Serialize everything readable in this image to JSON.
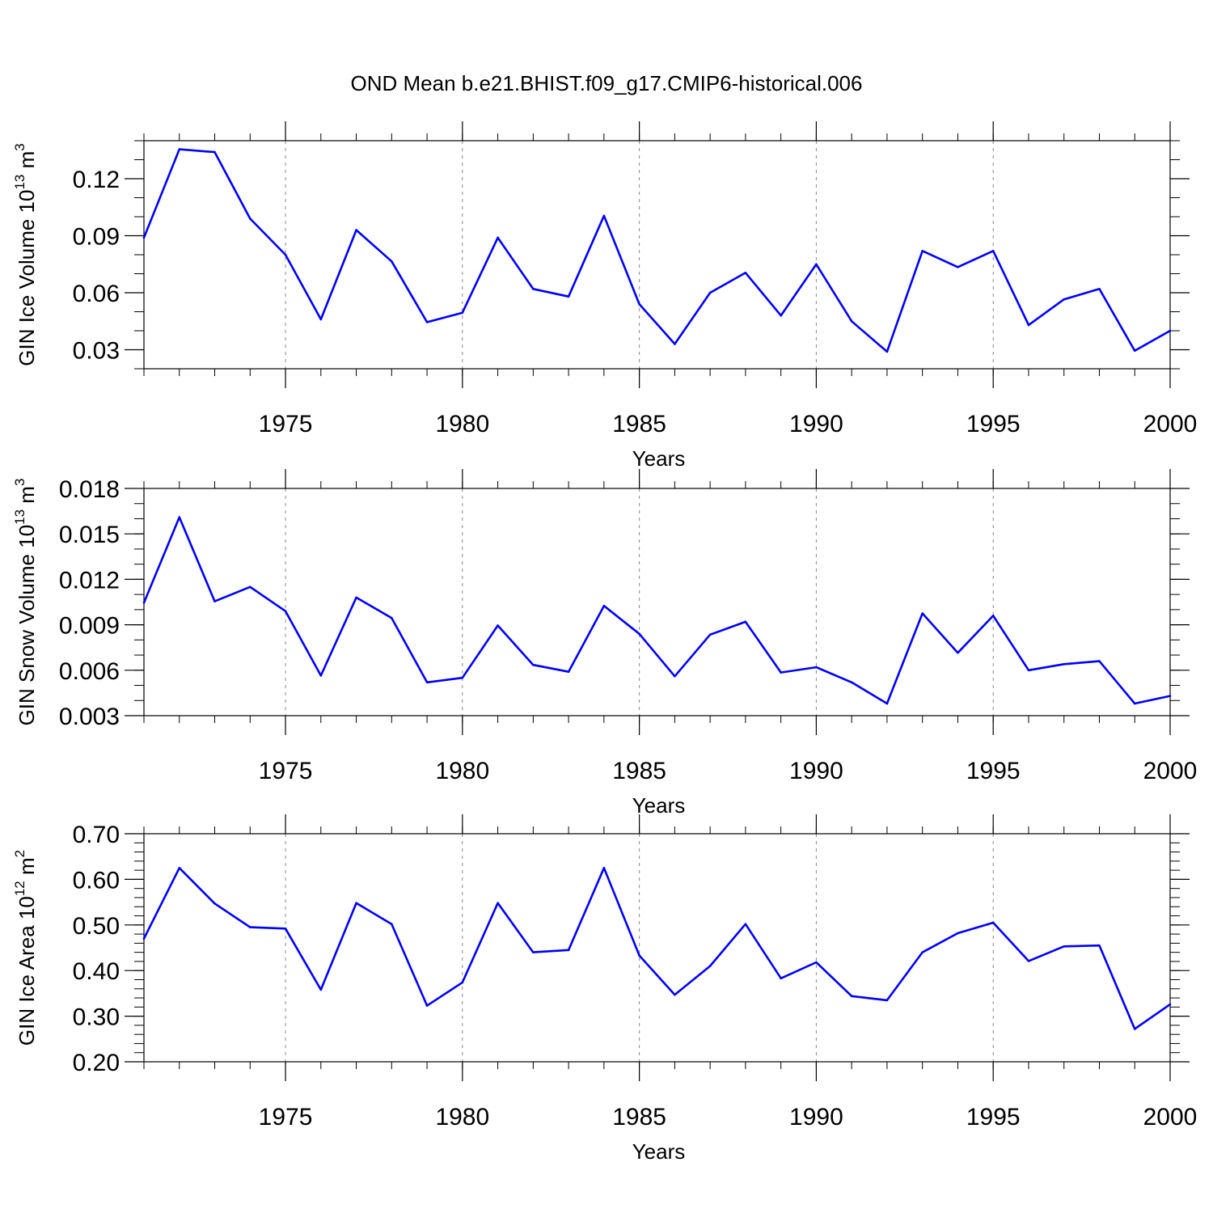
{
  "figure_title": "OND Mean b.e21.BHIST.f09_g17.CMIP6-historical.006",
  "line_color": "#0000ff",
  "chart_data": [
    {
      "type": "line",
      "title": "",
      "xlabel": "Years",
      "ylabel_parts": {
        "base": "GIN Ice Volume 10",
        "exp": "13",
        "unit": " m",
        "unit_exp": "3"
      },
      "xlim": [
        1971,
        2000
      ],
      "ylim": [
        0.02,
        0.14
      ],
      "xticks": [
        "1975",
        "1980",
        "1985",
        "1990",
        "1995",
        "2000"
      ],
      "yticks": [
        "0.03",
        "0.06",
        "0.09",
        "0.12"
      ],
      "grid_x": "dashed",
      "x": [
        1971,
        1972,
        1973,
        1974,
        1975,
        1976,
        1977,
        1978,
        1979,
        1980,
        1981,
        1982,
        1983,
        1984,
        1985,
        1986,
        1987,
        1988,
        1989,
        1990,
        1991,
        1992,
        1993,
        1994,
        1995,
        1996,
        1997,
        1998,
        1999,
        2000
      ],
      "values": [
        0.089,
        0.1355,
        0.134,
        0.099,
        0.08,
        0.046,
        0.093,
        0.0765,
        0.0445,
        0.0495,
        0.089,
        0.062,
        0.058,
        0.1005,
        0.054,
        0.033,
        0.06,
        0.0705,
        0.048,
        0.075,
        0.045,
        0.029,
        0.082,
        0.0735,
        0.082,
        0.043,
        0.0565,
        0.062,
        0.0295,
        0.04
      ]
    },
    {
      "type": "line",
      "title": "",
      "xlabel": "Years",
      "ylabel_parts": {
        "base": "GIN Snow Volume 10",
        "exp": "13",
        "unit": " m",
        "unit_exp": "3"
      },
      "xlim": [
        1971,
        2000
      ],
      "ylim": [
        0.003,
        0.018
      ],
      "xticks": [
        "1975",
        "1980",
        "1985",
        "1990",
        "1995",
        "2000"
      ],
      "yticks": [
        "0.003",
        "0.006",
        "0.009",
        "0.012",
        "0.015",
        "0.018"
      ],
      "grid_x": "dashed",
      "x": [
        1971,
        1972,
        1973,
        1974,
        1975,
        1976,
        1977,
        1978,
        1979,
        1980,
        1981,
        1982,
        1983,
        1984,
        1985,
        1986,
        1987,
        1988,
        1989,
        1990,
        1991,
        1992,
        1993,
        1994,
        1995,
        1996,
        1997,
        1998,
        1999,
        2000
      ],
      "values": [
        0.01045,
        0.0161,
        0.01055,
        0.0115,
        0.0099,
        0.00565,
        0.0108,
        0.00945,
        0.0052,
        0.0055,
        0.00895,
        0.00635,
        0.0059,
        0.01025,
        0.0084,
        0.0056,
        0.00835,
        0.0092,
        0.00585,
        0.0062,
        0.0052,
        0.0038,
        0.00975,
        0.00715,
        0.0096,
        0.006,
        0.0064,
        0.0066,
        0.0038,
        0.0043
      ]
    },
    {
      "type": "line",
      "title": "",
      "xlabel": "Years",
      "ylabel_parts": {
        "base": "GIN Ice Area 10",
        "exp": "12",
        "unit": " m",
        "unit_exp": "2"
      },
      "xlim": [
        1971,
        2000
      ],
      "ylim": [
        0.2,
        0.7
      ],
      "xticks": [
        "1975",
        "1980",
        "1985",
        "1990",
        "1995",
        "2000"
      ],
      "yticks": [
        "0.20",
        "0.30",
        "0.40",
        "0.50",
        "0.60",
        "0.70"
      ],
      "grid_x": "dashed",
      "x": [
        1971,
        1972,
        1973,
        1974,
        1975,
        1976,
        1977,
        1978,
        1979,
        1980,
        1981,
        1982,
        1983,
        1984,
        1985,
        1986,
        1987,
        1988,
        1989,
        1990,
        1991,
        1992,
        1993,
        1994,
        1995,
        1996,
        1997,
        1998,
        1999,
        2000
      ],
      "values": [
        0.47,
        0.625,
        0.547,
        0.495,
        0.492,
        0.358,
        0.548,
        0.502,
        0.323,
        0.374,
        0.548,
        0.44,
        0.445,
        0.625,
        0.433,
        0.347,
        0.41,
        0.502,
        0.383,
        0.418,
        0.344,
        0.335,
        0.44,
        0.482,
        0.505,
        0.421,
        0.453,
        0.455,
        0.272,
        0.326
      ]
    }
  ]
}
